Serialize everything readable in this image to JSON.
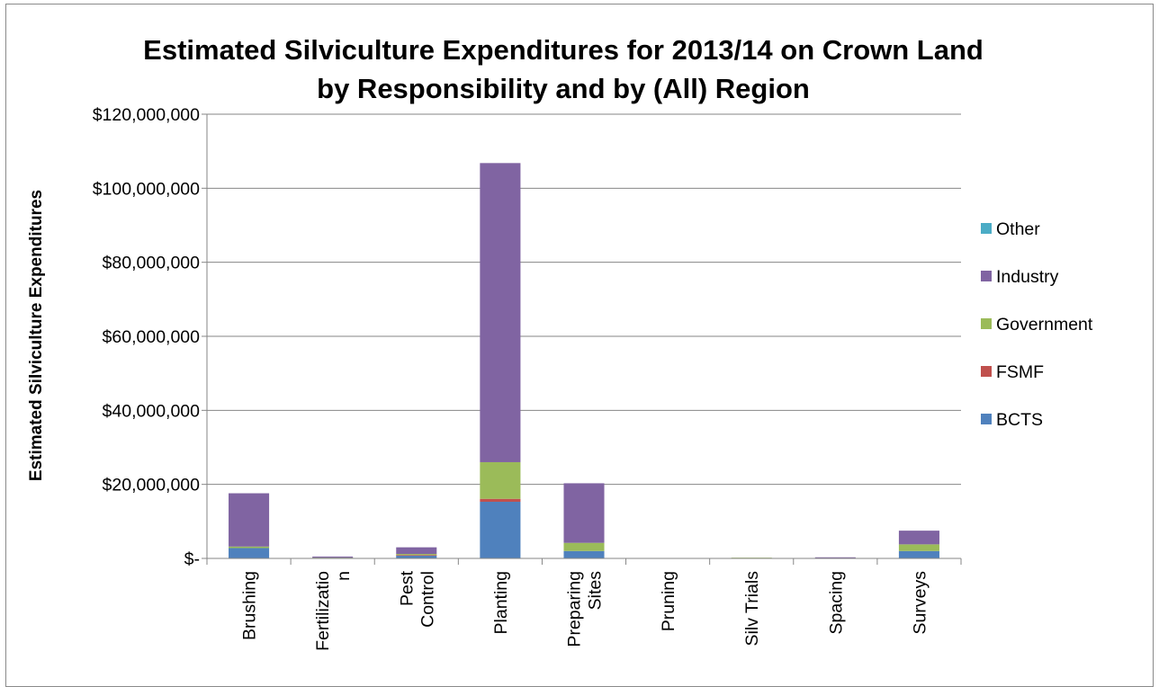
{
  "chart_data": {
    "type": "bar",
    "stacked": true,
    "title": "Estimated Silviculture Expenditures for 2013/14 on Crown Land by Responsibility and by (All) Region",
    "title_lines": [
      "Estimated Silviculture Expenditures for 2013/14 on Crown Land",
      "by Responsibility and by (All) Region"
    ],
    "xlabel": "",
    "ylabel": "Estimated Silviculture Expenditures",
    "ylim": [
      0,
      120000000
    ],
    "y_ticks": [
      0,
      20000000,
      40000000,
      60000000,
      80000000,
      100000000,
      120000000
    ],
    "y_tick_labels": [
      "$-",
      "$20,000,000",
      "$40,000,000",
      "$60,000,000",
      "$80,000,000",
      "$100,000,000",
      "$120,000,000"
    ],
    "grid": true,
    "legend_position": "right",
    "categories": [
      "Brushing",
      "Fertilization",
      "Pest Control",
      "Planting",
      "Preparing Sites",
      "Pruning",
      "Silv Trials",
      "Spacing",
      "Surveys"
    ],
    "category_label_lines": [
      [
        "Brushing"
      ],
      [
        "Fertilizatio",
        "n"
      ],
      [
        "Pest",
        "Control"
      ],
      [
        "Planting"
      ],
      [
        "Preparing",
        "Sites"
      ],
      [
        "Pruning"
      ],
      [
        "Silv Trials"
      ],
      [
        "Spacing"
      ],
      [
        "Surveys"
      ]
    ],
    "series": [
      {
        "name": "BCTS",
        "color": "#4F81BD",
        "values": [
          2800000,
          150000,
          800000,
          15300000,
          2000000,
          0,
          0,
          100000,
          2000000
        ]
      },
      {
        "name": "FSMF",
        "color": "#C0504D",
        "values": [
          0,
          0,
          100000,
          800000,
          0,
          0,
          0,
          0,
          0
        ]
      },
      {
        "name": "Government",
        "color": "#9BBB59",
        "values": [
          400000,
          50000,
          300000,
          9900000,
          2200000,
          0,
          200000,
          50000,
          1800000
        ]
      },
      {
        "name": "Industry",
        "color": "#8064A2",
        "values": [
          14400000,
          300000,
          1800000,
          80800000,
          16100000,
          0,
          0,
          150000,
          3700000
        ]
      },
      {
        "name": "Other",
        "color": "#4BACC6",
        "values": [
          0,
          0,
          0,
          0,
          0,
          0,
          0,
          0,
          0
        ]
      }
    ],
    "legend_order": [
      "Other",
      "Industry",
      "Government",
      "FSMF",
      "BCTS"
    ]
  }
}
